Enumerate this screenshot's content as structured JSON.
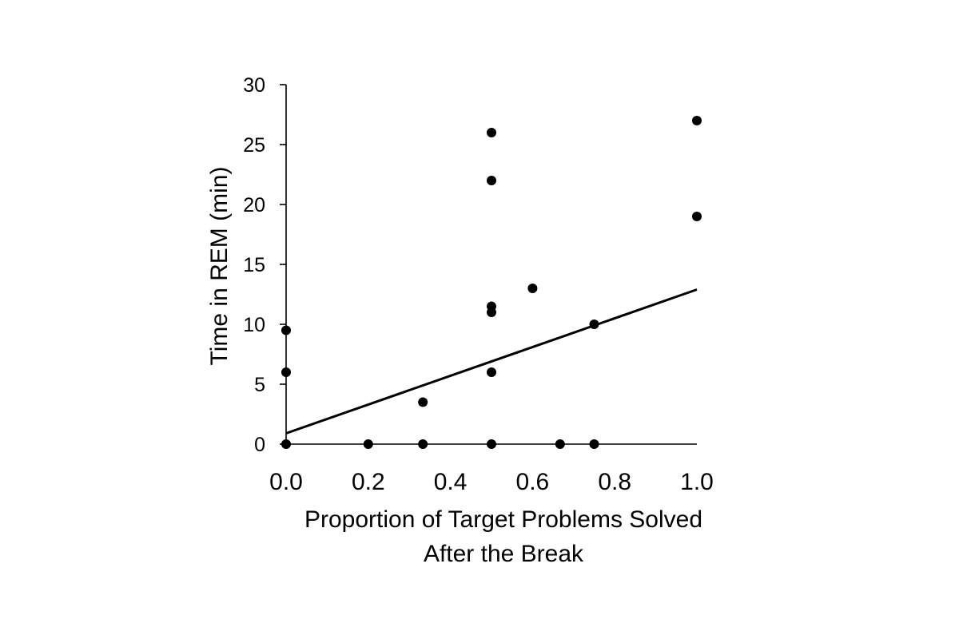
{
  "chart_data": {
    "type": "scatter",
    "title": "",
    "xlabel_lines": [
      "Proportion of Target Problems Solved",
      "After the Break"
    ],
    "ylabel": "Time in REM (min)",
    "xlim": [
      0,
      1
    ],
    "ylim": [
      0,
      30
    ],
    "x_ticks": [
      "0.0",
      "0.2",
      "0.4",
      "0.6",
      "0.8",
      "1.0"
    ],
    "y_ticks": [
      "0",
      "5",
      "10",
      "15",
      "20",
      "25",
      "30"
    ],
    "grid": false,
    "legend": "none",
    "points": [
      {
        "x": 0.0,
        "y": 9.5
      },
      {
        "x": 0.0,
        "y": 6.0
      },
      {
        "x": 0.0,
        "y": 0.0
      },
      {
        "x": 0.2,
        "y": 0.0
      },
      {
        "x": 0.333,
        "y": 3.5
      },
      {
        "x": 0.333,
        "y": 0.0
      },
      {
        "x": 0.5,
        "y": 26.0
      },
      {
        "x": 0.5,
        "y": 22.0
      },
      {
        "x": 0.5,
        "y": 11.5
      },
      {
        "x": 0.5,
        "y": 11.0
      },
      {
        "x": 0.5,
        "y": 6.0
      },
      {
        "x": 0.5,
        "y": 0.0
      },
      {
        "x": 0.6,
        "y": 13.0
      },
      {
        "x": 0.667,
        "y": 0.0
      },
      {
        "x": 0.75,
        "y": 10.0
      },
      {
        "x": 0.75,
        "y": 0.0
      },
      {
        "x": 1.0,
        "y": 27.0
      },
      {
        "x": 1.0,
        "y": 19.0
      }
    ],
    "trendline": {
      "x1": 0.0,
      "y1": 0.9,
      "x2": 1.0,
      "y2": 12.9
    },
    "colors": {
      "points": "#000000",
      "line": "#000000",
      "axis": "#000000"
    }
  }
}
